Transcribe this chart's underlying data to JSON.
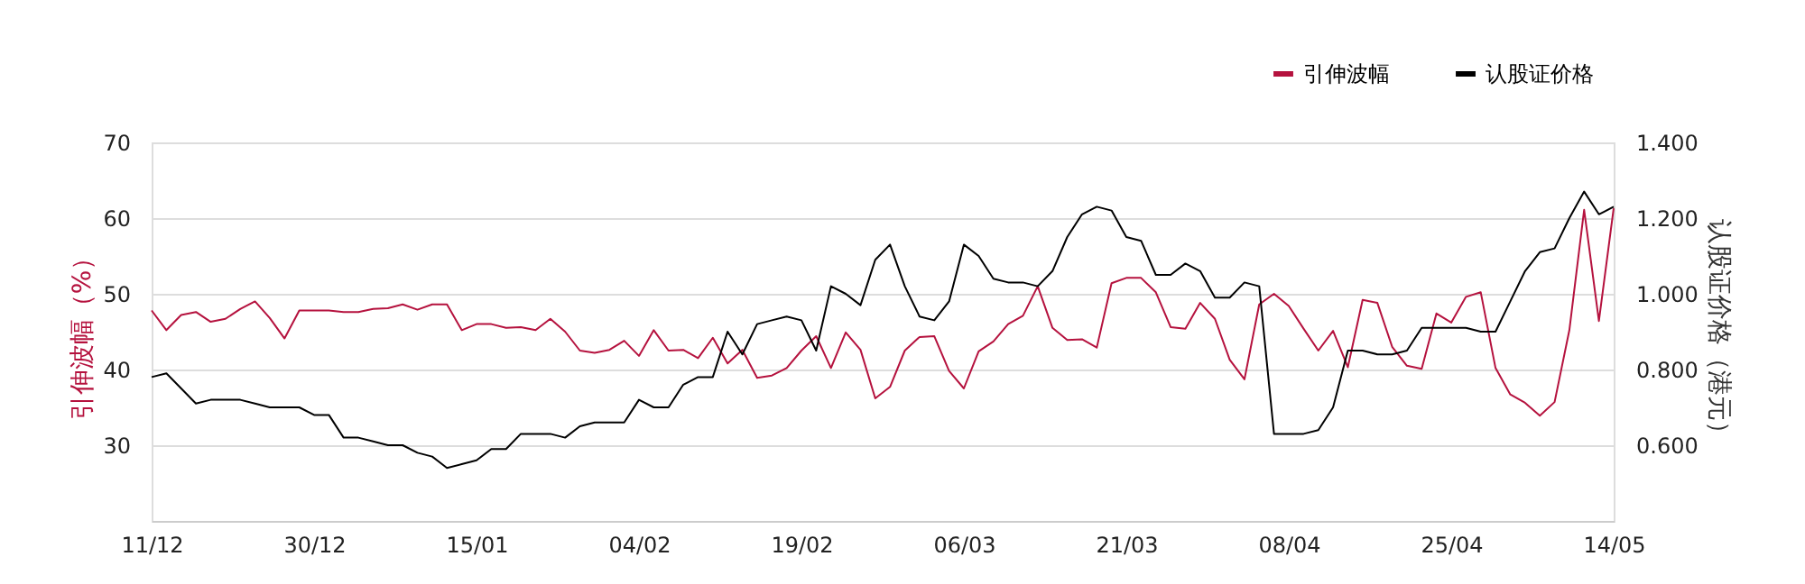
{
  "chart_data": {
    "type": "line",
    "ylabel": "引伸波幅（%）",
    "y2label": "认股证价格（港元）",
    "categories": [
      "11/12",
      null,
      null,
      null,
      null,
      null,
      null,
      null,
      null,
      null,
      null,
      "30/12",
      null,
      null,
      null,
      null,
      null,
      null,
      null,
      null,
      null,
      null,
      "15/01",
      null,
      null,
      null,
      null,
      null,
      null,
      null,
      null,
      null,
      null,
      "04/02",
      null,
      null,
      null,
      null,
      null,
      null,
      null,
      null,
      null,
      null,
      "19/02",
      null,
      null,
      null,
      null,
      null,
      null,
      null,
      null,
      null,
      null,
      "06/03",
      null,
      null,
      null,
      null,
      null,
      null,
      null,
      null,
      null,
      null,
      "21/03",
      null,
      null,
      null,
      null,
      null,
      null,
      null,
      null,
      null,
      null,
      "08/04",
      null,
      null,
      null,
      null,
      null,
      null,
      null,
      null,
      null,
      null,
      "25/04",
      null,
      null,
      null,
      null,
      null,
      null,
      null,
      null,
      null,
      null,
      "14/05"
    ],
    "series": [
      {
        "name": "引伸波幅",
        "color": "#b5123e",
        "axis": "y",
        "values": [
          47.8,
          45.2,
          47.2,
          47.6,
          46.3,
          46.7,
          48.0,
          49.0,
          46.8,
          44.1,
          47.8,
          47.8,
          47.8,
          47.6,
          47.6,
          48.0,
          48.1,
          48.6,
          47.9,
          48.6,
          48.6,
          45.2,
          46.0,
          46.0,
          45.5,
          45.6,
          45.2,
          46.7,
          45.0,
          42.5,
          42.2,
          42.6,
          43.8,
          41.8,
          45.2,
          42.5,
          42.6,
          41.5,
          44.2,
          40.8,
          42.6,
          38.9,
          39.2,
          40.2,
          42.5,
          44.4,
          40.2,
          44.9,
          42.6,
          36.2,
          37.7,
          42.5,
          44.3,
          44.4,
          39.8,
          37.5,
          42.4,
          43.7,
          46.0,
          47.1,
          51.0,
          45.5,
          43.9,
          44.0,
          42.9,
          51.4,
          52.1,
          52.1,
          50.2,
          45.6,
          45.4,
          48.8,
          46.7,
          41.3,
          38.7,
          48.6,
          50.0,
          48.4,
          45.4,
          42.5,
          45.1,
          40.3,
          49.2,
          48.8,
          43.0,
          40.5,
          40.1,
          47.4,
          46.2,
          49.6,
          50.2,
          40.2,
          36.7,
          35.6,
          33.9,
          35.7,
          45.2,
          61.1,
          46.4,
          61.3
        ]
      },
      {
        "name": "认股证价格",
        "color": "#000000",
        "axis": "y2",
        "values": [
          0.78,
          0.79,
          0.75,
          0.71,
          0.72,
          0.72,
          0.72,
          0.71,
          0.7,
          0.7,
          0.7,
          0.68,
          0.68,
          0.62,
          0.62,
          0.61,
          0.6,
          0.6,
          0.58,
          0.57,
          0.54,
          0.55,
          0.56,
          0.59,
          0.59,
          0.63,
          0.63,
          0.63,
          0.62,
          0.65,
          0.66,
          0.66,
          0.66,
          0.72,
          0.7,
          0.7,
          0.76,
          0.78,
          0.78,
          0.9,
          0.84,
          0.92,
          0.93,
          0.94,
          0.93,
          0.85,
          1.02,
          1.0,
          0.97,
          1.09,
          1.13,
          1.02,
          0.94,
          0.93,
          0.98,
          1.13,
          1.1,
          1.04,
          1.03,
          1.03,
          1.02,
          1.06,
          1.15,
          1.21,
          1.23,
          1.22,
          1.15,
          1.14,
          1.05,
          1.05,
          1.08,
          1.06,
          0.99,
          0.99,
          1.03,
          1.02,
          0.63,
          0.63,
          0.63,
          0.64,
          0.7,
          0.85,
          0.85,
          0.84,
          0.84,
          0.85,
          0.91,
          0.91,
          0.91,
          0.91,
          0.9,
          0.9,
          0.98,
          1.06,
          1.11,
          1.12,
          1.2,
          1.27,
          1.21,
          1.23
        ]
      }
    ],
    "ylim": [
      20,
      70
    ],
    "yticks": [
      30,
      40,
      50,
      60,
      70
    ],
    "y2lim": [
      0.4,
      1.4
    ],
    "y2ticks": [
      {
        "value": 0.6,
        "label": "0.600"
      },
      {
        "value": 0.8,
        "label": "0.800"
      },
      {
        "value": 1.0,
        "label": "1.000"
      },
      {
        "value": 1.2,
        "label": "1.200"
      },
      {
        "value": 1.4,
        "label": "1.400"
      }
    ],
    "grid": "y",
    "legend": "top right",
    "marker": "none",
    "line_style": "solid"
  }
}
